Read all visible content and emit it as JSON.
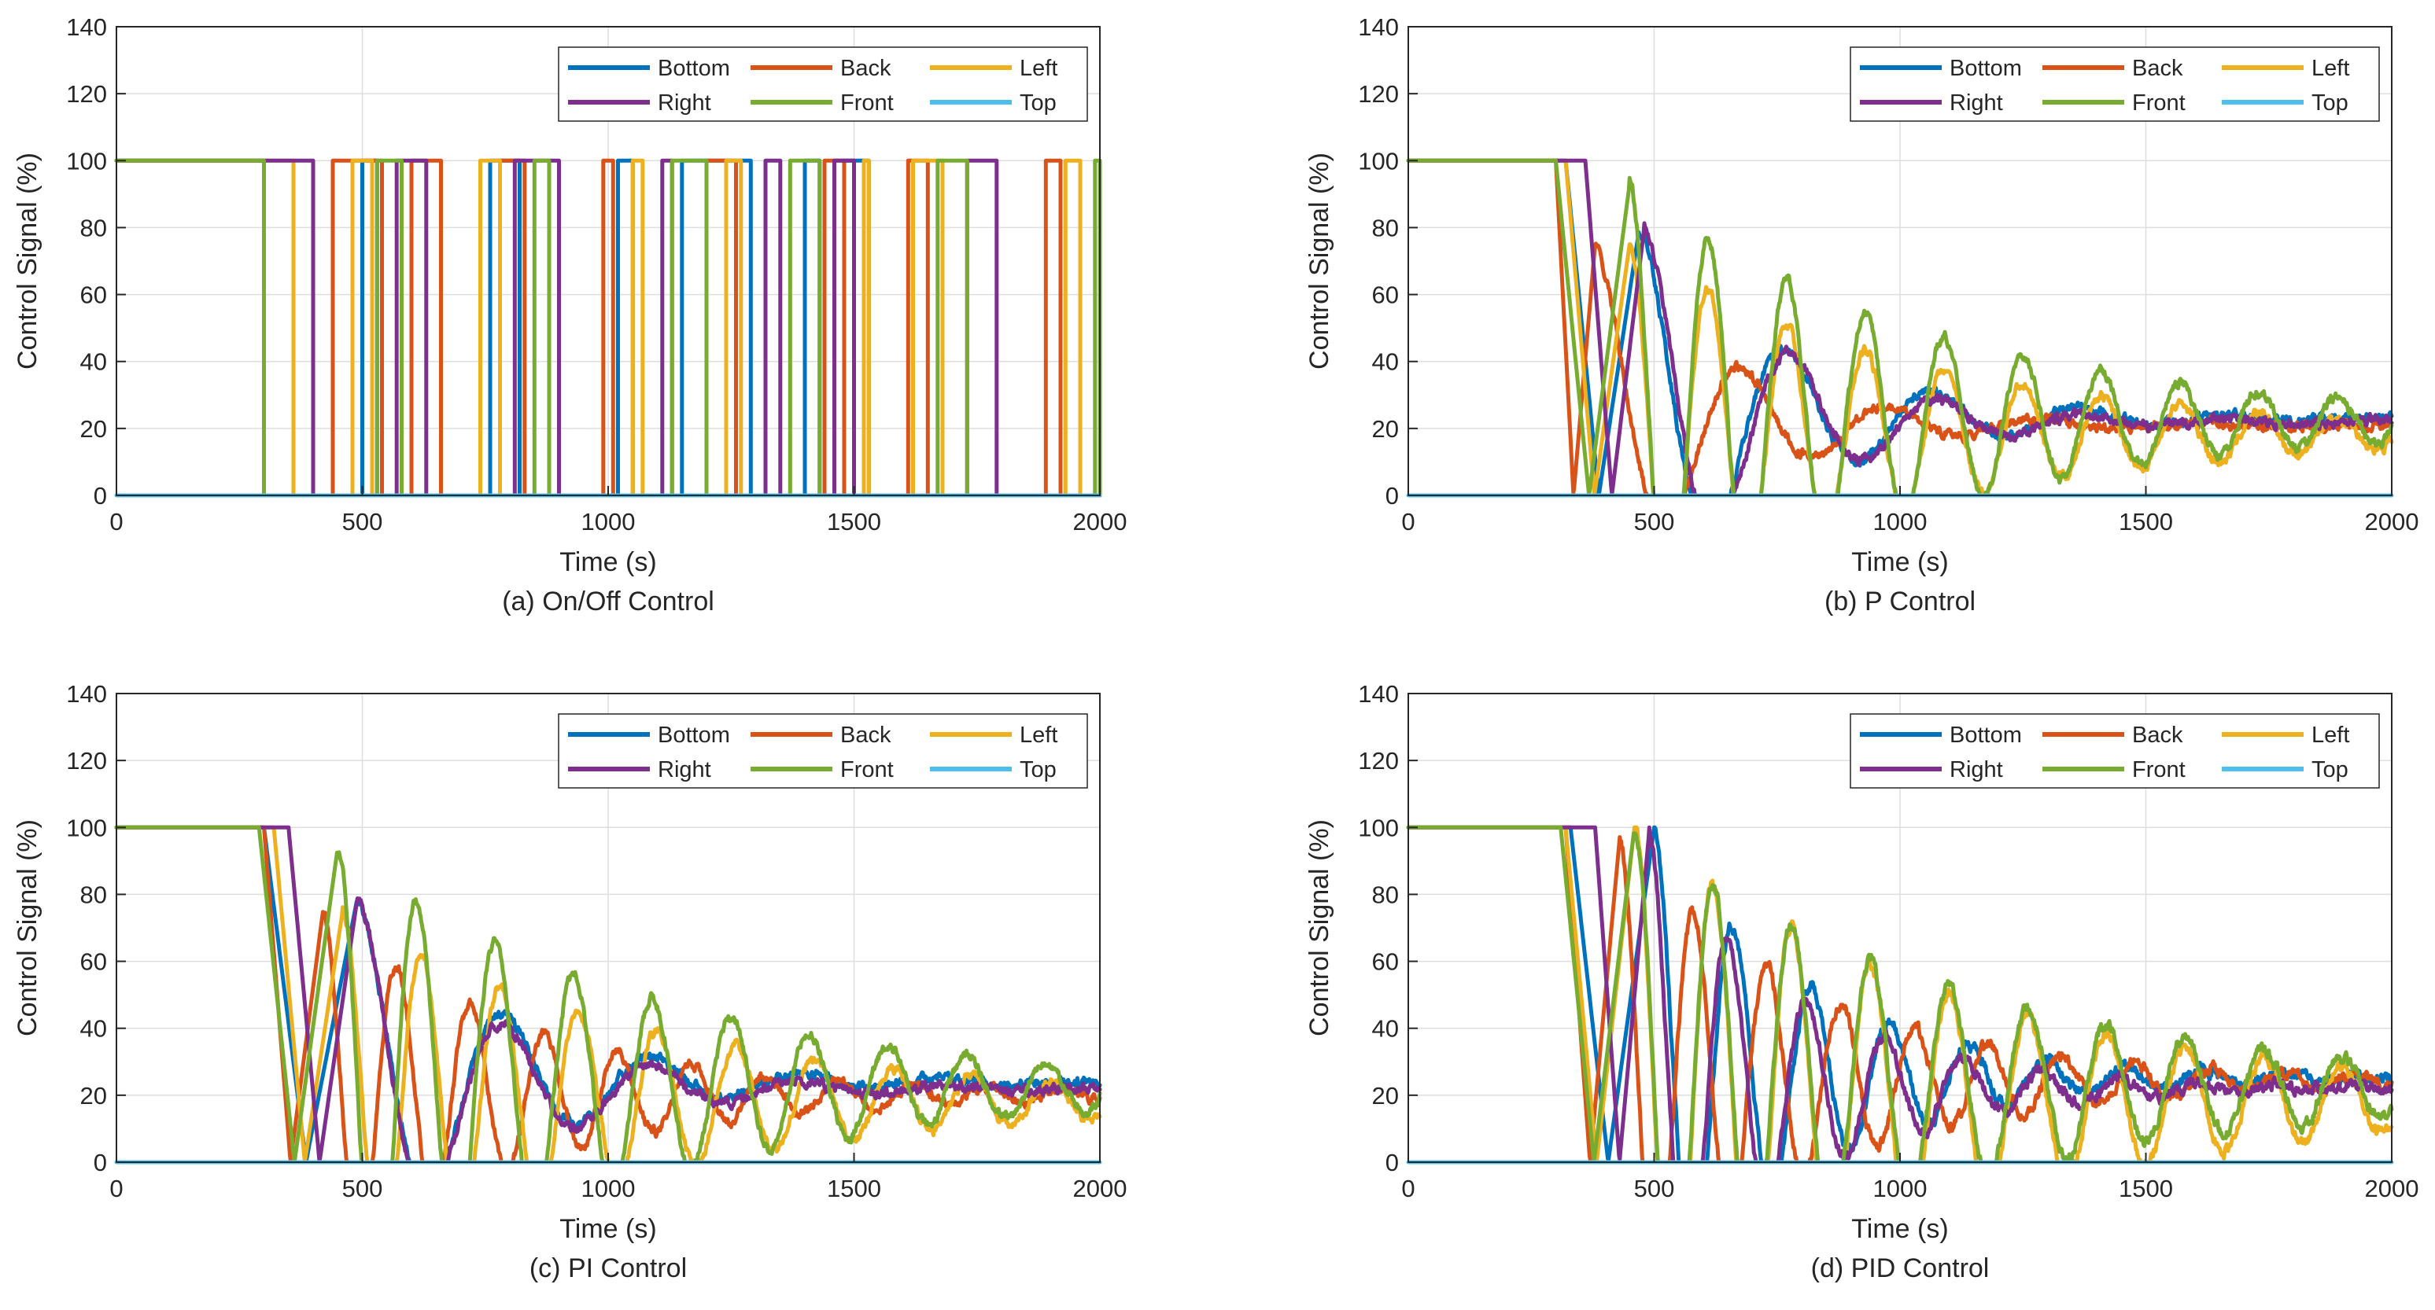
{
  "chart_data": [
    {
      "type": "line",
      "caption": "(a) On/Off Control",
      "xlabel": "Time (s)",
      "ylabel": "Control Signal (%)",
      "xlim": [
        0,
        2000
      ],
      "ylim": [
        0,
        140
      ],
      "xticks": [
        0,
        500,
        1000,
        1500,
        2000
      ],
      "yticks": [
        0,
        20,
        40,
        60,
        80,
        100,
        120,
        140
      ],
      "grid": true,
      "legend_position": "top-right",
      "legend_columns": 3,
      "mode": "onoff",
      "series": [
        {
          "name": "Bottom",
          "color": "#0072BD",
          "on_intervals": [
            [
              0,
              300
            ],
            [
              500,
              530
            ],
            [
              760,
              820
            ],
            [
              1020,
              1050
            ],
            [
              1150,
              1290
            ],
            [
              1400,
              1430
            ],
            [
              1480,
              1530
            ]
          ]
        },
        {
          "name": "Back",
          "color": "#D95319",
          "on_intervals": [
            [
              0,
              300
            ],
            [
              440,
              540
            ],
            [
              600,
              660
            ],
            [
              780,
              830
            ],
            [
              990,
              1010
            ],
            [
              1200,
              1260
            ],
            [
              1440,
              1480
            ],
            [
              1610,
              1650
            ],
            [
              1890,
              1920
            ]
          ]
        },
        {
          "name": "Left",
          "color": "#EDB120",
          "on_intervals": [
            [
              0,
              360
            ],
            [
              480,
              520
            ],
            [
              740,
              780
            ],
            [
              1050,
              1070
            ],
            [
              1240,
              1270
            ],
            [
              1520,
              1530
            ],
            [
              1620,
              1680
            ],
            [
              1930,
              1960
            ]
          ]
        },
        {
          "name": "Right",
          "color": "#7E2F8E",
          "on_intervals": [
            [
              0,
              400
            ],
            [
              570,
              630
            ],
            [
              810,
              900
            ],
            [
              1110,
              1130
            ],
            [
              1320,
              1350
            ],
            [
              1460,
              1500
            ],
            [
              1730,
              1790
            ]
          ]
        },
        {
          "name": "Front",
          "color": "#77AC30",
          "on_intervals": [
            [
              0,
              300
            ],
            [
              530,
              580
            ],
            [
              850,
              880
            ],
            [
              1130,
              1200
            ],
            [
              1370,
              1430
            ],
            [
              1670,
              1730
            ],
            [
              1990,
              2000
            ]
          ]
        },
        {
          "name": "Top",
          "color": "#4DBEEE",
          "on_intervals": []
        }
      ]
    },
    {
      "type": "line",
      "caption": "(b) P Control",
      "xlabel": "Time (s)",
      "ylabel": "Control Signal (%)",
      "xlim": [
        0,
        2000
      ],
      "ylim": [
        0,
        140
      ],
      "xticks": [
        0,
        500,
        1000,
        1500,
        2000
      ],
      "yticks": [
        0,
        20,
        40,
        60,
        80,
        100,
        120,
        140
      ],
      "grid": true,
      "legend_position": "top-right",
      "legend_columns": 3,
      "mode": "damped",
      "series": [
        {
          "name": "Bottom",
          "color": "#0072BD",
          "start": 320,
          "t0": 470,
          "peak": 80,
          "final": 23,
          "period": 300,
          "decay": 300,
          "noise": 2.5
        },
        {
          "name": "Back",
          "color": "#D95319",
          "start": 300,
          "t0": 380,
          "peak": 75,
          "final": 21,
          "period": 300,
          "decay": 260,
          "noise": 2.5
        },
        {
          "name": "Left",
          "color": "#EDB120",
          "start": 320,
          "t0": 450,
          "peak": 75,
          "final": 18,
          "period": 160,
          "decay": 600,
          "noise": 2.5
        },
        {
          "name": "Right",
          "color": "#7E2F8E",
          "start": 360,
          "t0": 480,
          "peak": 80,
          "final": 22,
          "period": 300,
          "decay": 280,
          "noise": 2.5
        },
        {
          "name": "Front",
          "color": "#77AC30",
          "start": 300,
          "t0": 450,
          "peak": 93,
          "final": 22,
          "period": 160,
          "decay": 620,
          "noise": 2.5
        },
        {
          "name": "Top",
          "color": "#4DBEEE",
          "constant": 0
        }
      ]
    },
    {
      "type": "line",
      "caption": "(c) PI Control",
      "xlabel": "Time (s)",
      "ylabel": "Control Signal (%)",
      "xlim": [
        0,
        2000
      ],
      "ylim": [
        0,
        140
      ],
      "xticks": [
        0,
        500,
        1000,
        1500,
        2000
      ],
      "yticks": [
        0,
        20,
        40,
        60,
        80,
        100,
        120,
        140
      ],
      "grid": true,
      "legend_position": "top-right",
      "legend_columns": 3,
      "mode": "damped",
      "series": [
        {
          "name": "Bottom",
          "color": "#0072BD",
          "start": 300,
          "t0": 490,
          "peak": 79,
          "final": 24,
          "period": 300,
          "decay": 300,
          "noise": 2.5
        },
        {
          "name": "Back",
          "color": "#D95319",
          "start": 300,
          "t0": 420,
          "peak": 75,
          "final": 20,
          "period": 150,
          "decay": 420,
          "noise": 2.5
        },
        {
          "name": "Left",
          "color": "#EDB120",
          "start": 320,
          "t0": 460,
          "peak": 75,
          "final": 18,
          "period": 160,
          "decay": 650,
          "noise": 2.5
        },
        {
          "name": "Right",
          "color": "#7E2F8E",
          "start": 350,
          "t0": 490,
          "peak": 79,
          "final": 22,
          "period": 300,
          "decay": 280,
          "noise": 2.5
        },
        {
          "name": "Front",
          "color": "#77AC30",
          "start": 290,
          "t0": 450,
          "peak": 94,
          "final": 22,
          "period": 160,
          "decay": 650,
          "noise": 2.5
        },
        {
          "name": "Top",
          "color": "#4DBEEE",
          "constant": 0
        }
      ]
    },
    {
      "type": "line",
      "caption": "(d) PID Control",
      "xlabel": "Time (s)",
      "ylabel": "Control Signal (%)",
      "xlim": [
        0,
        2000
      ],
      "ylim": [
        0,
        140
      ],
      "xticks": [
        0,
        500,
        1000,
        1500,
        2000
      ],
      "yticks": [
        0,
        20,
        40,
        60,
        80,
        100,
        120,
        140
      ],
      "grid": true,
      "legend_position": "top-right",
      "legend_columns": 3,
      "mode": "damped",
      "series": [
        {
          "name": "Bottom",
          "color": "#0072BD",
          "start": 330,
          "t0": 500,
          "peak": 100,
          "final": 25,
          "period": 160,
          "decay": 320,
          "noise": 3
        },
        {
          "name": "Back",
          "color": "#D95319",
          "start": 320,
          "t0": 430,
          "peak": 97,
          "final": 24,
          "period": 150,
          "decay": 400,
          "noise": 3
        },
        {
          "name": "Left",
          "color": "#EDB120",
          "start": 320,
          "t0": 460,
          "peak": 100,
          "final": 18,
          "period": 160,
          "decay": 700,
          "noise": 3
        },
        {
          "name": "Right",
          "color": "#7E2F8E",
          "start": 380,
          "t0": 490,
          "peak": 99,
          "final": 22,
          "period": 160,
          "decay": 300,
          "noise": 3
        },
        {
          "name": "Front",
          "color": "#77AC30",
          "start": 310,
          "t0": 460,
          "peak": 100,
          "final": 22,
          "period": 160,
          "decay": 680,
          "noise": 3
        },
        {
          "name": "Top",
          "color": "#4DBEEE",
          "constant": 0
        }
      ]
    }
  ]
}
